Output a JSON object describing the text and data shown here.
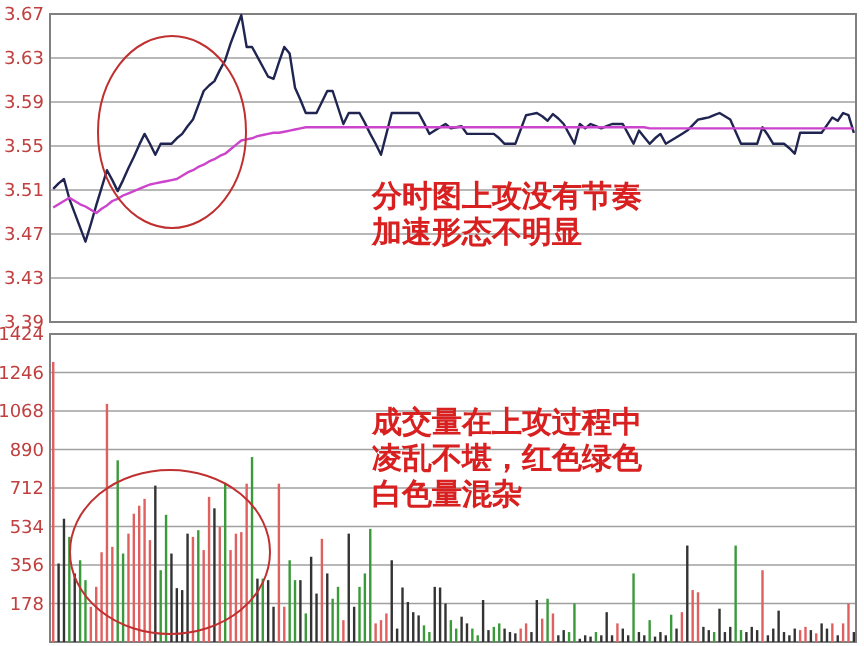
{
  "chart_data": [
    {
      "type": "line",
      "ylim": [
        3.39,
        3.67
      ],
      "yticks": [
        3.39,
        3.43,
        3.47,
        3.51,
        3.55,
        3.59,
        3.63,
        3.67
      ],
      "grid": "y",
      "tick_labels": "y",
      "annotations": [
        "分时图上攻没有节奏加速形态不明显"
      ],
      "categories": [
        null,
        null,
        null,
        null,
        null,
        null,
        null,
        null,
        null,
        null,
        null,
        null,
        null,
        null,
        null,
        null,
        null,
        null,
        null,
        null,
        null,
        null,
        null,
        null,
        null,
        null,
        null,
        null,
        null,
        null,
        null,
        null,
        null,
        null,
        null,
        null,
        null,
        null,
        null,
        null,
        null,
        null,
        null,
        null,
        null,
        null,
        null,
        null,
        null,
        null,
        null,
        null,
        null,
        null,
        null,
        null,
        null,
        null,
        null,
        null,
        null,
        null,
        null,
        null,
        null,
        null,
        null,
        null,
        null,
        null,
        null,
        null,
        null,
        null,
        null,
        null,
        null,
        null,
        null,
        null,
        null,
        null,
        null,
        null,
        null,
        null,
        null,
        null,
        null,
        null,
        null,
        null,
        null,
        null,
        null,
        null,
        null,
        null,
        null,
        null,
        null,
        null,
        null,
        null,
        null,
        null,
        null,
        null,
        null,
        null,
        null,
        null,
        null,
        null,
        null,
        null,
        null,
        null,
        null,
        null,
        null,
        null,
        null,
        null,
        null,
        null,
        null,
        null,
        null,
        null,
        null,
        null,
        null,
        null,
        null,
        null,
        null,
        null,
        null,
        null,
        null,
        null,
        null,
        null,
        null,
        null,
        null,
        null,
        null,
        null
      ],
      "series": [
        {
          "color": "#1f2550",
          "values": [
            3.511,
            3.516,
            3.52,
            3.502,
            3.489,
            3.476,
            3.463,
            3.479,
            3.496,
            3.512,
            3.528,
            3.519,
            3.509,
            3.519,
            3.53,
            3.54,
            3.551,
            3.561,
            3.552,
            3.542,
            3.552,
            3.552,
            3.552,
            3.557,
            3.561,
            3.568,
            3.574,
            3.587,
            3.6,
            3.605,
            3.609,
            3.619,
            3.628,
            3.643,
            3.656,
            3.669,
            3.64,
            3.64,
            3.631,
            3.622,
            3.613,
            3.611,
            3.626,
            3.64,
            3.634,
            3.603,
            3.592,
            3.58,
            3.58,
            3.58,
            3.59,
            3.6,
            3.6,
            3.585,
            3.57,
            3.58,
            3.58,
            3.58,
            3.571,
            3.561,
            3.552,
            3.542,
            3.561,
            3.58,
            3.58,
            3.58,
            3.58,
            3.58,
            3.58,
            3.571,
            3.561,
            3.564,
            3.567,
            3.57,
            3.566,
            3.567,
            3.568,
            3.561,
            3.561,
            3.561,
            3.561,
            3.561,
            3.561,
            3.557,
            3.552,
            3.552,
            3.552,
            3.565,
            3.578,
            3.579,
            3.58,
            3.577,
            3.573,
            3.579,
            3.575,
            3.57,
            3.561,
            3.552,
            3.57,
            3.566,
            3.57,
            3.568,
            3.566,
            3.568,
            3.57,
            3.57,
            3.57,
            3.561,
            3.552,
            3.564,
            3.558,
            3.552,
            3.557,
            3.561,
            3.552,
            3.555,
            3.558,
            3.561,
            3.564,
            3.569,
            3.574,
            3.575,
            3.576,
            3.578,
            3.58,
            3.577,
            3.574,
            3.563,
            3.552,
            3.552,
            3.552,
            3.552,
            3.567,
            3.56,
            3.552,
            3.552,
            3.552,
            3.548,
            3.543,
            3.562,
            3.562,
            3.562,
            3.562,
            3.562,
            3.569,
            3.576,
            3.573,
            3.58,
            3.578,
            3.562
          ]
        },
        {
          "color": "#cc44cc",
          "values": [
            3.494,
            3.497,
            3.5,
            3.503,
            3.5,
            3.497,
            3.495,
            3.492,
            3.489,
            3.493,
            3.496,
            3.5,
            3.502,
            3.505,
            3.507,
            3.509,
            3.511,
            3.513,
            3.515,
            3.516,
            3.517,
            3.518,
            3.519,
            3.52,
            3.523,
            3.526,
            3.528,
            3.531,
            3.533,
            3.536,
            3.538,
            3.541,
            3.543,
            3.547,
            3.551,
            3.555,
            3.556,
            3.557,
            3.559,
            3.56,
            3.561,
            3.562,
            3.562,
            3.563,
            3.564,
            3.565,
            3.566,
            3.567,
            3.567,
            3.567,
            3.567,
            3.567,
            3.567,
            3.567,
            3.567,
            3.567,
            3.567,
            3.567,
            3.567,
            3.567,
            3.567,
            3.567,
            3.567,
            3.567,
            3.567,
            3.567,
            3.567,
            3.567,
            3.567,
            3.567,
            3.567,
            3.567,
            3.567,
            3.567,
            3.567,
            3.567,
            3.567,
            3.567,
            3.567,
            3.567,
            3.567,
            3.567,
            3.567,
            3.567,
            3.567,
            3.567,
            3.567,
            3.567,
            3.567,
            3.567,
            3.567,
            3.567,
            3.567,
            3.567,
            3.567,
            3.567,
            3.567,
            3.567,
            3.567,
            3.567,
            3.567,
            3.567,
            3.567,
            3.567,
            3.567,
            3.567,
            3.567,
            3.567,
            3.567,
            3.567,
            3.567,
            3.566,
            3.566,
            3.566,
            3.566,
            3.566,
            3.566,
            3.566,
            3.566,
            3.566,
            3.566,
            3.566,
            3.566,
            3.566,
            3.566,
            3.566,
            3.566,
            3.566,
            3.566,
            3.566,
            3.566,
            3.566,
            3.566,
            3.566,
            3.566,
            3.566,
            3.566,
            3.566,
            3.566,
            3.566,
            3.566,
            3.566,
            3.566,
            3.566,
            3.566,
            3.566,
            3.566,
            3.566,
            3.566,
            3.566
          ]
        }
      ]
    },
    {
      "type": "bar",
      "ylim": [
        0,
        1424
      ],
      "yticks": [
        178,
        356,
        534,
        712,
        890,
        1068,
        1246,
        1424
      ],
      "grid": "y",
      "tick_labels": "y",
      "annotations": [
        "成交量在上攻过程中凌乱不堪，红色绿色白色量混杂"
      ],
      "categories": [
        null,
        null,
        null,
        null,
        null,
        null,
        null,
        null,
        null,
        null,
        null,
        null,
        null,
        null,
        null,
        null,
        null,
        null,
        null,
        null,
        null,
        null,
        null,
        null,
        null,
        null,
        null,
        null,
        null,
        null,
        null,
        null,
        null,
        null,
        null,
        null,
        null,
        null,
        null,
        null,
        null,
        null,
        null,
        null,
        null,
        null,
        null,
        null,
        null,
        null,
        null,
        null,
        null,
        null,
        null,
        null,
        null,
        null,
        null,
        null,
        null,
        null,
        null,
        null,
        null,
        null,
        null,
        null,
        null,
        null,
        null,
        null,
        null,
        null,
        null,
        null,
        null,
        null,
        null,
        null,
        null,
        null,
        null,
        null,
        null,
        null,
        null,
        null,
        null,
        null,
        null,
        null,
        null,
        null,
        null,
        null,
        null,
        null,
        null,
        null,
        null,
        null,
        null,
        null,
        null,
        null,
        null,
        null,
        null,
        null,
        null,
        null,
        null,
        null,
        null,
        null,
        null,
        null,
        null,
        null,
        null,
        null,
        null,
        null,
        null,
        null,
        null,
        null,
        null,
        null,
        null,
        null,
        null,
        null,
        null,
        null,
        null,
        null,
        null,
        null,
        null,
        null,
        null,
        null,
        null,
        null,
        null,
        null,
        null,
        null
      ],
      "values": [
        1295,
        363,
        570,
        486,
        317,
        378,
        286,
        163,
        255,
        415,
        1101,
        440,
        840,
        409,
        501,
        593,
        630,
        662,
        471,
        723,
        332,
        588,
        409,
        249,
        240,
        501,
        486,
        517,
        425,
        671,
        618,
        532,
        732,
        425,
        501,
        508,
        732,
        855,
        293,
        293,
        286,
        163,
        732,
        163,
        378,
        286,
        286,
        132,
        394,
        224,
        477,
        317,
        200,
        255,
        101,
        501,
        163,
        255,
        317,
        523,
        86,
        101,
        132,
        378,
        62,
        252,
        185,
        138,
        123,
        77,
        46,
        255,
        252,
        178,
        101,
        62,
        117,
        86,
        62,
        31,
        194,
        55,
        70,
        86,
        62,
        46,
        40,
        62,
        86,
        46,
        194,
        108,
        200,
        132,
        31,
        55,
        46,
        178,
        15,
        31,
        25,
        46,
        31,
        138,
        31,
        86,
        62,
        31,
        317,
        46,
        31,
        101,
        25,
        46,
        31,
        126,
        62,
        138,
        446,
        240,
        230,
        70,
        55,
        46,
        154,
        46,
        70,
        446,
        55,
        46,
        70,
        55,
        332,
        31,
        62,
        145,
        46,
        31,
        62,
        55,
        70,
        55,
        40,
        86,
        62,
        86,
        31,
        86,
        178,
        46
      ],
      "colors": [
        "#e06060",
        "#333333",
        "#333333",
        "#3a9a3a",
        "#333333",
        "#3a9a3a",
        "#3a9a3a",
        "#e06060",
        "#e06060",
        "#e06060",
        "#e06060",
        "#e06060",
        "#3a9a3a",
        "#3a9a3a",
        "#e06060",
        "#e06060",
        "#e06060",
        "#e06060",
        "#e06060",
        "#333333",
        "#3a9a3a",
        "#3a9a3a",
        "#333333",
        "#333333",
        "#333333",
        "#333333",
        "#e06060",
        "#3a9a3a",
        "#e06060",
        "#e06060",
        "#333333",
        "#e06060",
        "#3a9a3a",
        "#e06060",
        "#e06060",
        "#e06060",
        "#e06060",
        "#3a9a3a",
        "#333333",
        "#3a9a3a",
        "#333333",
        "#333333",
        "#e06060",
        "#e06060",
        "#3a9a3a",
        "#3a9a3a",
        "#333333",
        "#3a9a3a",
        "#333333",
        "#333333",
        "#e06060",
        "#333333",
        "#3a9a3a",
        "#3a9a3a",
        "#e06060",
        "#333333",
        "#333333",
        "#3a9a3a",
        "#3a9a3a",
        "#3a9a3a",
        "#e06060",
        "#e06060",
        "#e06060",
        "#333333",
        "#333333",
        "#333333",
        "#333333",
        "#333333",
        "#333333",
        "#3a9a3a",
        "#3a9a3a",
        "#333333",
        "#333333",
        "#333333",
        "#3a9a3a",
        "#3a9a3a",
        "#333333",
        "#333333",
        "#3a9a3a",
        "#3a9a3a",
        "#333333",
        "#333333",
        "#3a9a3a",
        "#3a9a3a",
        "#333333",
        "#333333",
        "#333333",
        "#e06060",
        "#e06060",
        "#333333",
        "#333333",
        "#e06060",
        "#3a9a3a",
        "#e06060",
        "#333333",
        "#333333",
        "#3a9a3a",
        "#3a9a3a",
        "#333333",
        "#333333",
        "#333333",
        "#3a9a3a",
        "#333333",
        "#333333",
        "#333333",
        "#e06060",
        "#333333",
        "#333333",
        "#3a9a3a",
        "#333333",
        "#333333",
        "#3a9a3a",
        "#333333",
        "#333333",
        "#333333",
        "#3a9a3a",
        "#333333",
        "#e06060",
        "#333333",
        "#e06060",
        "#e06060",
        "#333333",
        "#333333",
        "#3a9a3a",
        "#333333",
        "#333333",
        "#333333",
        "#3a9a3a",
        "#3a9a3a",
        "#333333",
        "#333333",
        "#333333",
        "#e06060",
        "#333333",
        "#333333",
        "#333333",
        "#333333",
        "#333333",
        "#333333",
        "#e06060",
        "#e06060",
        "#333333",
        "#e06060",
        "#333333",
        "#333333",
        "#e06060",
        "#333333",
        "#e06060",
        "#e06060",
        "#333333"
      ]
    }
  ]
}
